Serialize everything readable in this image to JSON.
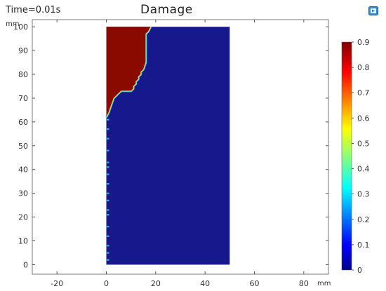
{
  "header": {
    "time_label": "Time=0.01s",
    "plot_title": "Damage"
  },
  "toolbar": {
    "icon": "screen-capture-icon"
  },
  "colors": {
    "damaged": "#8a0a00",
    "undamaged": "#17188c",
    "front_cyan": "#3bd7ee",
    "front_yellow": "#f4e23a"
  },
  "chart_data": {
    "type": "heatmap",
    "title": "Damage",
    "xlabel": "",
    "ylabel": "",
    "x_unit": "mm",
    "y_unit": "mm",
    "xlim": [
      -30,
      90
    ],
    "ylim": [
      -4,
      103
    ],
    "x_ticks": [
      -20,
      0,
      20,
      40,
      60,
      80
    ],
    "y_ticks": [
      0,
      10,
      20,
      30,
      40,
      50,
      60,
      70,
      80,
      90,
      100
    ],
    "domain": {
      "x": [
        0,
        50
      ],
      "y": [
        0,
        100
      ]
    },
    "damaged_region_boundary": [
      [
        0,
        100
      ],
      [
        18,
        100
      ],
      [
        17,
        98
      ],
      [
        16,
        97
      ],
      [
        16,
        85
      ],
      [
        15,
        82
      ],
      [
        14,
        81
      ],
      [
        14,
        80
      ],
      [
        13,
        79
      ],
      [
        13,
        78
      ],
      [
        12,
        77
      ],
      [
        12,
        76
      ],
      [
        11,
        75
      ],
      [
        11,
        74
      ],
      [
        10,
        73
      ],
      [
        6,
        73
      ],
      [
        5,
        72
      ],
      [
        4,
        71
      ],
      [
        3,
        70
      ],
      [
        2,
        67
      ],
      [
        1,
        64
      ],
      [
        0,
        62
      ]
    ],
    "damaged_value": 0.9,
    "undamaged_value": 0,
    "colorbar": {
      "min": 0,
      "max": 0.9,
      "ticks": [
        0,
        0.1,
        0.2,
        0.3,
        0.4,
        0.5,
        0.6,
        0.7,
        0.8,
        0.9
      ],
      "colormap": "jet"
    }
  }
}
